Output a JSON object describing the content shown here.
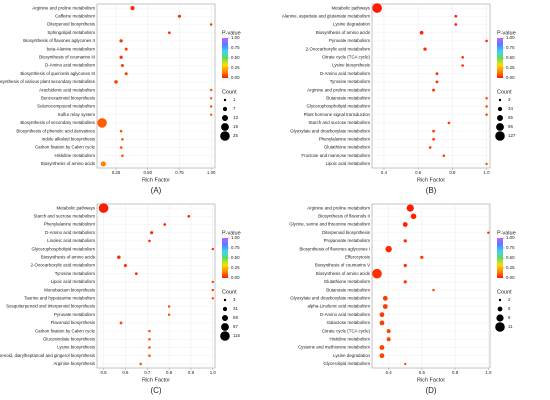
{
  "chart_data": [
    {
      "type": "scatter",
      "panel_label": "(A)",
      "xlabel": "Rich Factor",
      "categories": [
        "Arginine and proline metabolism",
        "Caffeine metabolism",
        "Diterpenoid biosynthesis",
        "Sphingolipid metabolism",
        "Biosynthesis of flavones aglycones II",
        "beta-Alanine metabolism",
        "Biosynthesis of coumarins III",
        "D-Amino acid metabolism",
        "Biosynthesis of quercetin aglycones III",
        "Biosynthesis of various plant secondary metabolites",
        "Arachidonic acid metabolism",
        "Benzoxazinoid biosynthesis",
        "Selenocompound metabolism",
        "Sulfur relay system",
        "Biosynthesis of secondary metabolites",
        "Biosynthesis of phenolic acid derivatives",
        "Indole alkaloid biosynthesis",
        "Carbon fixation by Calvin cycle",
        "Histidine metabolism",
        "Biosynthesis of amino acids"
      ],
      "values": [
        0.38,
        0.75,
        1.0,
        0.67,
        0.29,
        0.33,
        0.29,
        0.3,
        0.33,
        0.25,
        1.0,
        1.0,
        1.0,
        1.0,
        0.14,
        0.29,
        0.3,
        0.29,
        0.3,
        0.15
      ],
      "pvalues": [
        0.02,
        0.01,
        0.02,
        0.03,
        0.04,
        0.05,
        0.04,
        0.05,
        0.05,
        0.06,
        0.08,
        0.08,
        0.08,
        0.08,
        0.1,
        0.1,
        0.1,
        0.1,
        0.1,
        0.15
      ],
      "counts": [
        7,
        3,
        1,
        2,
        4,
        3,
        4,
        3,
        3,
        5,
        1,
        1,
        1,
        1,
        25,
        2,
        2,
        2,
        2,
        10
      ],
      "xlim": [
        0.1,
        1.03
      ],
      "xticks": [
        0.25,
        {
          "value": 0.5,
          "label": "0.50"
        },
        0.75,
        {
          "value": 1,
          "label": "1.00"
        }
      ],
      "grid": true,
      "color_title": "P-value",
      "clim": [
        0,
        1
      ],
      "cticks": [
        {
          "value": 0,
          "label": "0.00"
        },
        0.25,
        {
          "value": 0.5,
          "label": "0.50"
        },
        0.75,
        {
          "value": 1,
          "label": "1.00"
        }
      ],
      "colormap": [
        "#ff1a00",
        "#ff8c00",
        "#f5e000",
        "#60dc60",
        "#40d0f0",
        "#5080ff",
        "#c060ff"
      ],
      "size_title": "Count",
      "size_ticks": [
        1,
        7,
        13,
        19,
        25
      ]
    },
    {
      "type": "scatter",
      "panel_label": "(B)",
      "xlabel": "Rich Factor",
      "categories": [
        "Metabolic pathways",
        "Alanine, aspartate and glutamate metabolism",
        "Lysine degradation",
        "Biosynthesis of amino acids",
        "Pyruvate metabolism",
        "2-Oxocarboxylic acid metabolism",
        "Citrate cycle (TCA cycle)",
        "Lysine biosynthesis",
        "D-Amino acid metabolism",
        "Tyrosine metabolism",
        "Arginine and proline metabolism",
        "Butanoate metabolism",
        "Glycerophospholipid metabolism",
        "Plant hormone signal transduction",
        "Starch and sucrose metabolism",
        "Glyoxylate and dicarboxylate metabolism",
        "Phenylalanine metabolism",
        "Glutathione metabolism",
        "Fructose and mannose metabolism",
        "Lipoic acid metabolism"
      ],
      "values": [
        0.36,
        0.82,
        0.82,
        0.62,
        1.0,
        0.64,
        0.86,
        0.86,
        0.71,
        0.71,
        0.69,
        1.0,
        1.0,
        1.0,
        0.78,
        0.69,
        0.69,
        0.67,
        0.75,
        1.0
      ],
      "pvalues": [
        0.0,
        0.01,
        0.01,
        0.01,
        0.02,
        0.02,
        0.02,
        0.02,
        0.03,
        0.03,
        0.03,
        0.04,
        0.04,
        0.04,
        0.05,
        0.05,
        0.05,
        0.06,
        0.06,
        0.07
      ],
      "counts": [
        127,
        9,
        9,
        25,
        6,
        18,
        6,
        6,
        10,
        10,
        11,
        4,
        4,
        4,
        7,
        9,
        9,
        8,
        6,
        3
      ],
      "xlim": [
        0.33,
        1.02
      ],
      "xticks": [
        0.4,
        0.6,
        0.8,
        {
          "value": 1,
          "label": "1.0"
        }
      ],
      "grid": true,
      "color_title": "P-value",
      "clim": [
        0,
        1
      ],
      "cticks": [
        {
          "value": 0,
          "label": "0.00"
        },
        0.25,
        {
          "value": 0.5,
          "label": "0.50"
        },
        0.75,
        {
          "value": 1,
          "label": "1.00"
        }
      ],
      "colormap": [
        "#ff1a00",
        "#ff8c00",
        "#f5e000",
        "#60dc60",
        "#40d0f0",
        "#5080ff",
        "#c060ff"
      ],
      "size_title": "Count",
      "size_ticks": [
        3,
        34,
        65,
        96,
        127
      ]
    },
    {
      "type": "scatter",
      "panel_label": "(C)",
      "xlabel": "Rich Factor",
      "categories": [
        "Metabolic pathways",
        "Starch and sucrose metabolism",
        "Phenylalanine metabolism",
        "D-Amino acid metabolism",
        "Linoleic acid metabolism",
        "Glycerophospholipid metabolism",
        "Biosynthesis of amino acids",
        "2-Oxocarboxylic acid metabolism",
        "Tyrosine metabolism",
        "Lipoic acid metabolism",
        "Monobactam biosynthesis",
        "Taurine and hypotaurine metabolism",
        "Sesquiterpenoid and triterpenoid biosynthesis",
        "Pyruvate metabolism",
        "Flavonoid biosynthesis",
        "Carbon fixation by Calvin cycle",
        "Glucosinolate biosynthesis",
        "Lysine biosynthesis",
        "Stilbenoid, diarylheptanoid and gingerol biosynthesis",
        "Arginine biosynthesis"
      ],
      "values": [
        0.5,
        0.89,
        0.78,
        0.72,
        0.71,
        1.0,
        0.57,
        0.6,
        0.65,
        1.0,
        1.0,
        1.0,
        0.8,
        0.8,
        0.58,
        0.71,
        0.71,
        0.71,
        0.71,
        0.67
      ],
      "pvalues": [
        0.0,
        0.01,
        0.01,
        0.02,
        0.02,
        0.03,
        0.03,
        0.03,
        0.04,
        0.05,
        0.05,
        0.05,
        0.06,
        0.06,
        0.07,
        0.08,
        0.08,
        0.08,
        0.08,
        0.09
      ],
      "counts": [
        115,
        8,
        7,
        13,
        5,
        3,
        20,
        14,
        9,
        3,
        3,
        3,
        4,
        4,
        11,
        5,
        5,
        5,
        5,
        6
      ],
      "xlim": [
        0.47,
        1.01
      ],
      "xticks": [
        0.5,
        0.6,
        0.7,
        0.8,
        0.9,
        {
          "value": 1,
          "label": "1.0"
        }
      ],
      "grid": true,
      "color_title": "P-value",
      "clim": [
        0,
        1
      ],
      "cticks": [
        {
          "value": 0,
          "label": "0.00"
        },
        0.25,
        {
          "value": 0.5,
          "label": "0.50"
        },
        0.75,
        {
          "value": 1,
          "label": "1.00"
        }
      ],
      "colormap": [
        "#ff1a00",
        "#ff8c00",
        "#f5e000",
        "#60dc60",
        "#40d0f0",
        "#5080ff",
        "#c060ff"
      ],
      "size_title": "Count",
      "size_ticks": [
        3,
        31,
        59,
        87,
        115
      ]
    },
    {
      "type": "scatter",
      "panel_label": "(D)",
      "xlabel": "Rich Factor",
      "categories": [
        "Arginine and proline metabolism",
        "Biosynthesis of flavonols II",
        "Glycine, serine and threonine metabolism",
        "Diterpenoid biosynthesis",
        "Propanoate metabolism",
        "Biosynthesis of flavones aglycones I",
        "Efferocytosis",
        "Biosynthesis of coumarins V",
        "Biosynthesis of amino acids",
        "Glutathione metabolism",
        "Butanoate metabolism",
        "Glyoxylate and dicarboxylate metabolism",
        "alpha-Linolenic acid metabolism",
        "D-Amino acid metabolism",
        "Galactose metabolism",
        "Citrate cycle (TCA cycle)",
        "Histidine metabolism",
        "Cysteine and methionine metabolism",
        "Lysine degradation",
        "Glycerolipid metabolism"
      ],
      "values": [
        0.53,
        0.55,
        0.5,
        1.0,
        0.5,
        0.4,
        0.6,
        0.5,
        0.33,
        0.5,
        0.67,
        0.38,
        0.38,
        0.36,
        0.36,
        0.4,
        0.4,
        0.36,
        0.36,
        0.5
      ],
      "pvalues": [
        0.0,
        0.01,
        0.01,
        0.02,
        0.02,
        0.02,
        0.03,
        0.03,
        0.03,
        0.04,
        0.04,
        0.05,
        0.05,
        0.05,
        0.05,
        0.06,
        0.06,
        0.06,
        0.06,
        0.07
      ],
      "counts": [
        8,
        6,
        5,
        2,
        3,
        7,
        3,
        3,
        11,
        3,
        2,
        5,
        5,
        5,
        5,
        4,
        4,
        5,
        5,
        2
      ],
      "xlim": [
        0.3,
        1.01
      ],
      "xticks": [
        0.4,
        0.6,
        0.8,
        {
          "value": 1,
          "label": "1.0"
        }
      ],
      "grid": true,
      "color_title": "P-value",
      "clim": [
        0,
        1
      ],
      "cticks": [
        {
          "value": 0,
          "label": "0.00"
        },
        0.25,
        {
          "value": 0.5,
          "label": "0.50"
        },
        0.75,
        {
          "value": 1,
          "label": "1.00"
        }
      ],
      "colormap": [
        "#ff1a00",
        "#ff8c00",
        "#f5e000",
        "#60dc60",
        "#40d0f0",
        "#5080ff",
        "#c060ff"
      ],
      "size_title": "Count",
      "size_ticks": [
        2,
        5,
        8,
        11
      ]
    }
  ]
}
